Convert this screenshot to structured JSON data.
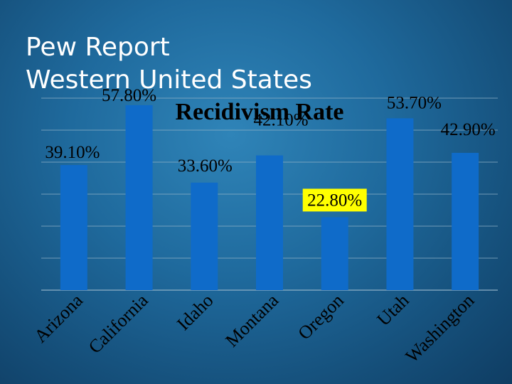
{
  "slide": {
    "title_line1": "Pew Report",
    "title_line2": "Western United States"
  },
  "chart_data": {
    "type": "bar",
    "title": "Recidivism Rate",
    "categories": [
      "Arizona",
      "California",
      "Idaho",
      "Montana",
      "Oregon",
      "Utah",
      "Washington"
    ],
    "values": [
      39.1,
      57.8,
      33.6,
      42.1,
      22.8,
      53.7,
      42.9
    ],
    "value_labels": [
      "39.10%",
      "57.80%",
      "33.60%",
      "42.10%",
      "22.80%",
      "53.70%",
      "42.90%"
    ],
    "ylim": [
      0,
      60
    ],
    "grid": true,
    "legend": "none",
    "colors": {
      "bar": "#0f6bc9",
      "grid": "#8fb0c6",
      "highlight_label_bg": "#ffff00",
      "text": "#000000"
    }
  }
}
